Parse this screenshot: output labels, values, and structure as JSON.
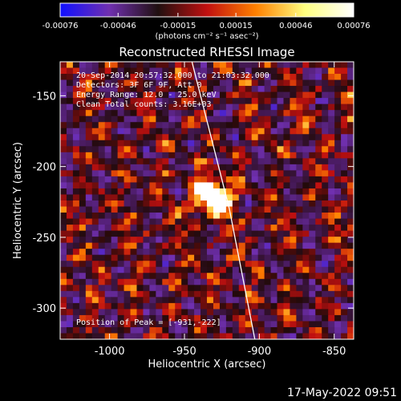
{
  "chart_data": {
    "type": "heatmap",
    "title": "Reconstructed RHESSI Image",
    "xlabel": "Heliocentric X (arcsec)",
    "ylabel": "Heliocentric Y (arcsec)",
    "xlim": [
      -1033,
      -837
    ],
    "ylim": [
      -322,
      -126
    ],
    "x_ticks": [
      -1000,
      -950,
      -900,
      -850
    ],
    "x_tick_labels": [
      "-1000",
      "-950",
      "-900",
      "-850"
    ],
    "y_ticks": [
      -150,
      -200,
      -250,
      -300
    ],
    "y_tick_labels": [
      "-150",
      "-200",
      "-250",
      "-300"
    ],
    "colorbar": {
      "range": [
        -0.00076,
        0.00076
      ],
      "ticks": [
        -0.00076,
        -0.00046,
        -0.00015,
        0.00015,
        0.00046,
        0.00076
      ],
      "tick_labels": [
        "-0.00076",
        "-0.00046",
        "-0.00015",
        "0.00015",
        "0.00046",
        "0.00076"
      ],
      "label": "(photons cm⁻² s⁻¹ asec⁻²)",
      "colors": [
        "#1010ff",
        "#7030b0",
        "#201010",
        "#c01010",
        "#ff8000",
        "#ffff80",
        "#ffffff"
      ]
    },
    "annotations": [
      "20-Sep-2014 20:57:32.000 to 21:03:32.000",
      "Detectors: 3F 6F 9F, Att 0",
      "Energy Range: 12.0 - 25.0 keV",
      "Clean    Total counts: 3.16E+03"
    ],
    "peak_label": "Position of Peak = [-931,-222]",
    "peak": [
      -931,
      -222
    ],
    "limb_line": [
      [
        -945,
        -126
      ],
      [
        -920,
        -230
      ],
      [
        -903,
        -322
      ]
    ],
    "grid": false
  },
  "footer": {
    "timestamp": "17-May-2022 09:51"
  }
}
